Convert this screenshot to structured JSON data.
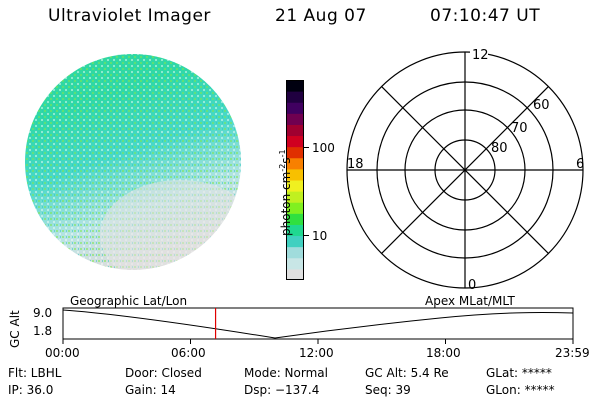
{
  "header": {
    "instrument": "Ultraviolet Imager",
    "date": "21 Aug 07",
    "time": "07:10:47 UT"
  },
  "colorbar": {
    "unit_label": "photon cm",
    "unit_exp1": "-2",
    "unit_s": "s",
    "unit_exp2": "-1",
    "tick_100": "100",
    "tick_10": "10",
    "colors": [
      "#e0e0e0",
      "#c8e6e6",
      "#a0dcdc",
      "#40d0c0",
      "#20d890",
      "#30e040",
      "#80f020",
      "#c0f020",
      "#f0f020",
      "#f8c000",
      "#f88000",
      "#e03000",
      "#d00020",
      "#a00030",
      "#700050",
      "#400060",
      "#200040",
      "#000010"
    ]
  },
  "polar_grid": {
    "labels": {
      "top": "12",
      "bottom": "0",
      "left": "18",
      "right": "6"
    },
    "lat_labels": [
      "60",
      "70",
      "80"
    ]
  },
  "timeline": {
    "left_title": "Geographic Lat/Lon",
    "right_title": "Apex  MLat/MLT",
    "axis_title": "GC Alt",
    "y_top": "9.0",
    "y_bottom": "1.8",
    "x_ticks": [
      "00:00",
      "06:00",
      "12:00",
      "18:00",
      "23:59"
    ],
    "marker_time_hours": 7.18
  },
  "status": {
    "filter": "Flt: LBHL",
    "ip": "IP: 36.0",
    "door": "Door: Closed",
    "gain": "Gain: 14",
    "mode": "Mode: Normal",
    "dsp": "Dsp: −137.4",
    "gc_alt": "GC Alt: 5.4 Re",
    "seq": "Seq: 39",
    "glat": "GLat: *****",
    "glon": "GLon: *****"
  }
}
